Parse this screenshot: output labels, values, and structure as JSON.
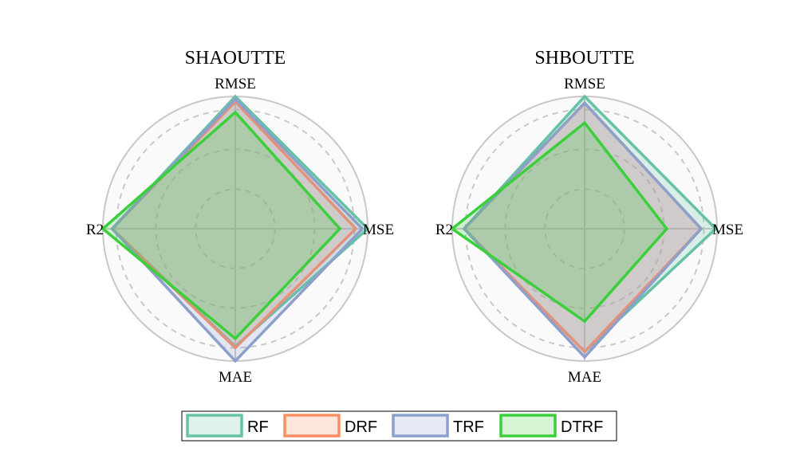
{
  "chart_data": [
    {
      "type": "radar",
      "title": "SHAOUTTE",
      "axes": [
        "RMSE",
        "MSE",
        "MAE",
        "R2"
      ],
      "rlim": [
        0,
        1
      ],
      "grid": true,
      "series": [
        {
          "name": "RF",
          "values": [
            1.0,
            1.0,
            0.89,
            0.93
          ]
        },
        {
          "name": "DRF",
          "values": [
            0.96,
            0.91,
            0.9,
            0.93
          ]
        },
        {
          "name": "TRF",
          "values": [
            0.98,
            0.96,
            1.0,
            0.93
          ]
        },
        {
          "name": "DTRF",
          "values": [
            0.88,
            0.79,
            0.83,
            1.0
          ]
        }
      ]
    },
    {
      "type": "radar",
      "title": "SHBOUTTE",
      "axes": [
        "RMSE",
        "MSE",
        "MAE",
        "R2"
      ],
      "rlim": [
        0,
        1
      ],
      "grid": true,
      "series": [
        {
          "name": "RF",
          "values": [
            1.0,
            0.99,
            0.93,
            0.91
          ]
        },
        {
          "name": "DRF",
          "values": [
            0.95,
            0.88,
            0.93,
            0.91
          ]
        },
        {
          "name": "TRF",
          "values": [
            0.95,
            0.88,
            0.97,
            0.91
          ]
        },
        {
          "name": "DTRF",
          "values": [
            0.8,
            0.62,
            0.7,
            1.0
          ]
        }
      ]
    }
  ],
  "legend": {
    "placement": "bottom-center",
    "entries": [
      "RF",
      "DRF",
      "TRF",
      "DTRF"
    ]
  },
  "colors": {
    "RF": "#66c2a5",
    "DRF": "#fc8d62",
    "TRF": "#8da0cb",
    "DTRF": "#3ccf3c",
    "grid": "#c8c8c8",
    "background": "#fafafa"
  }
}
